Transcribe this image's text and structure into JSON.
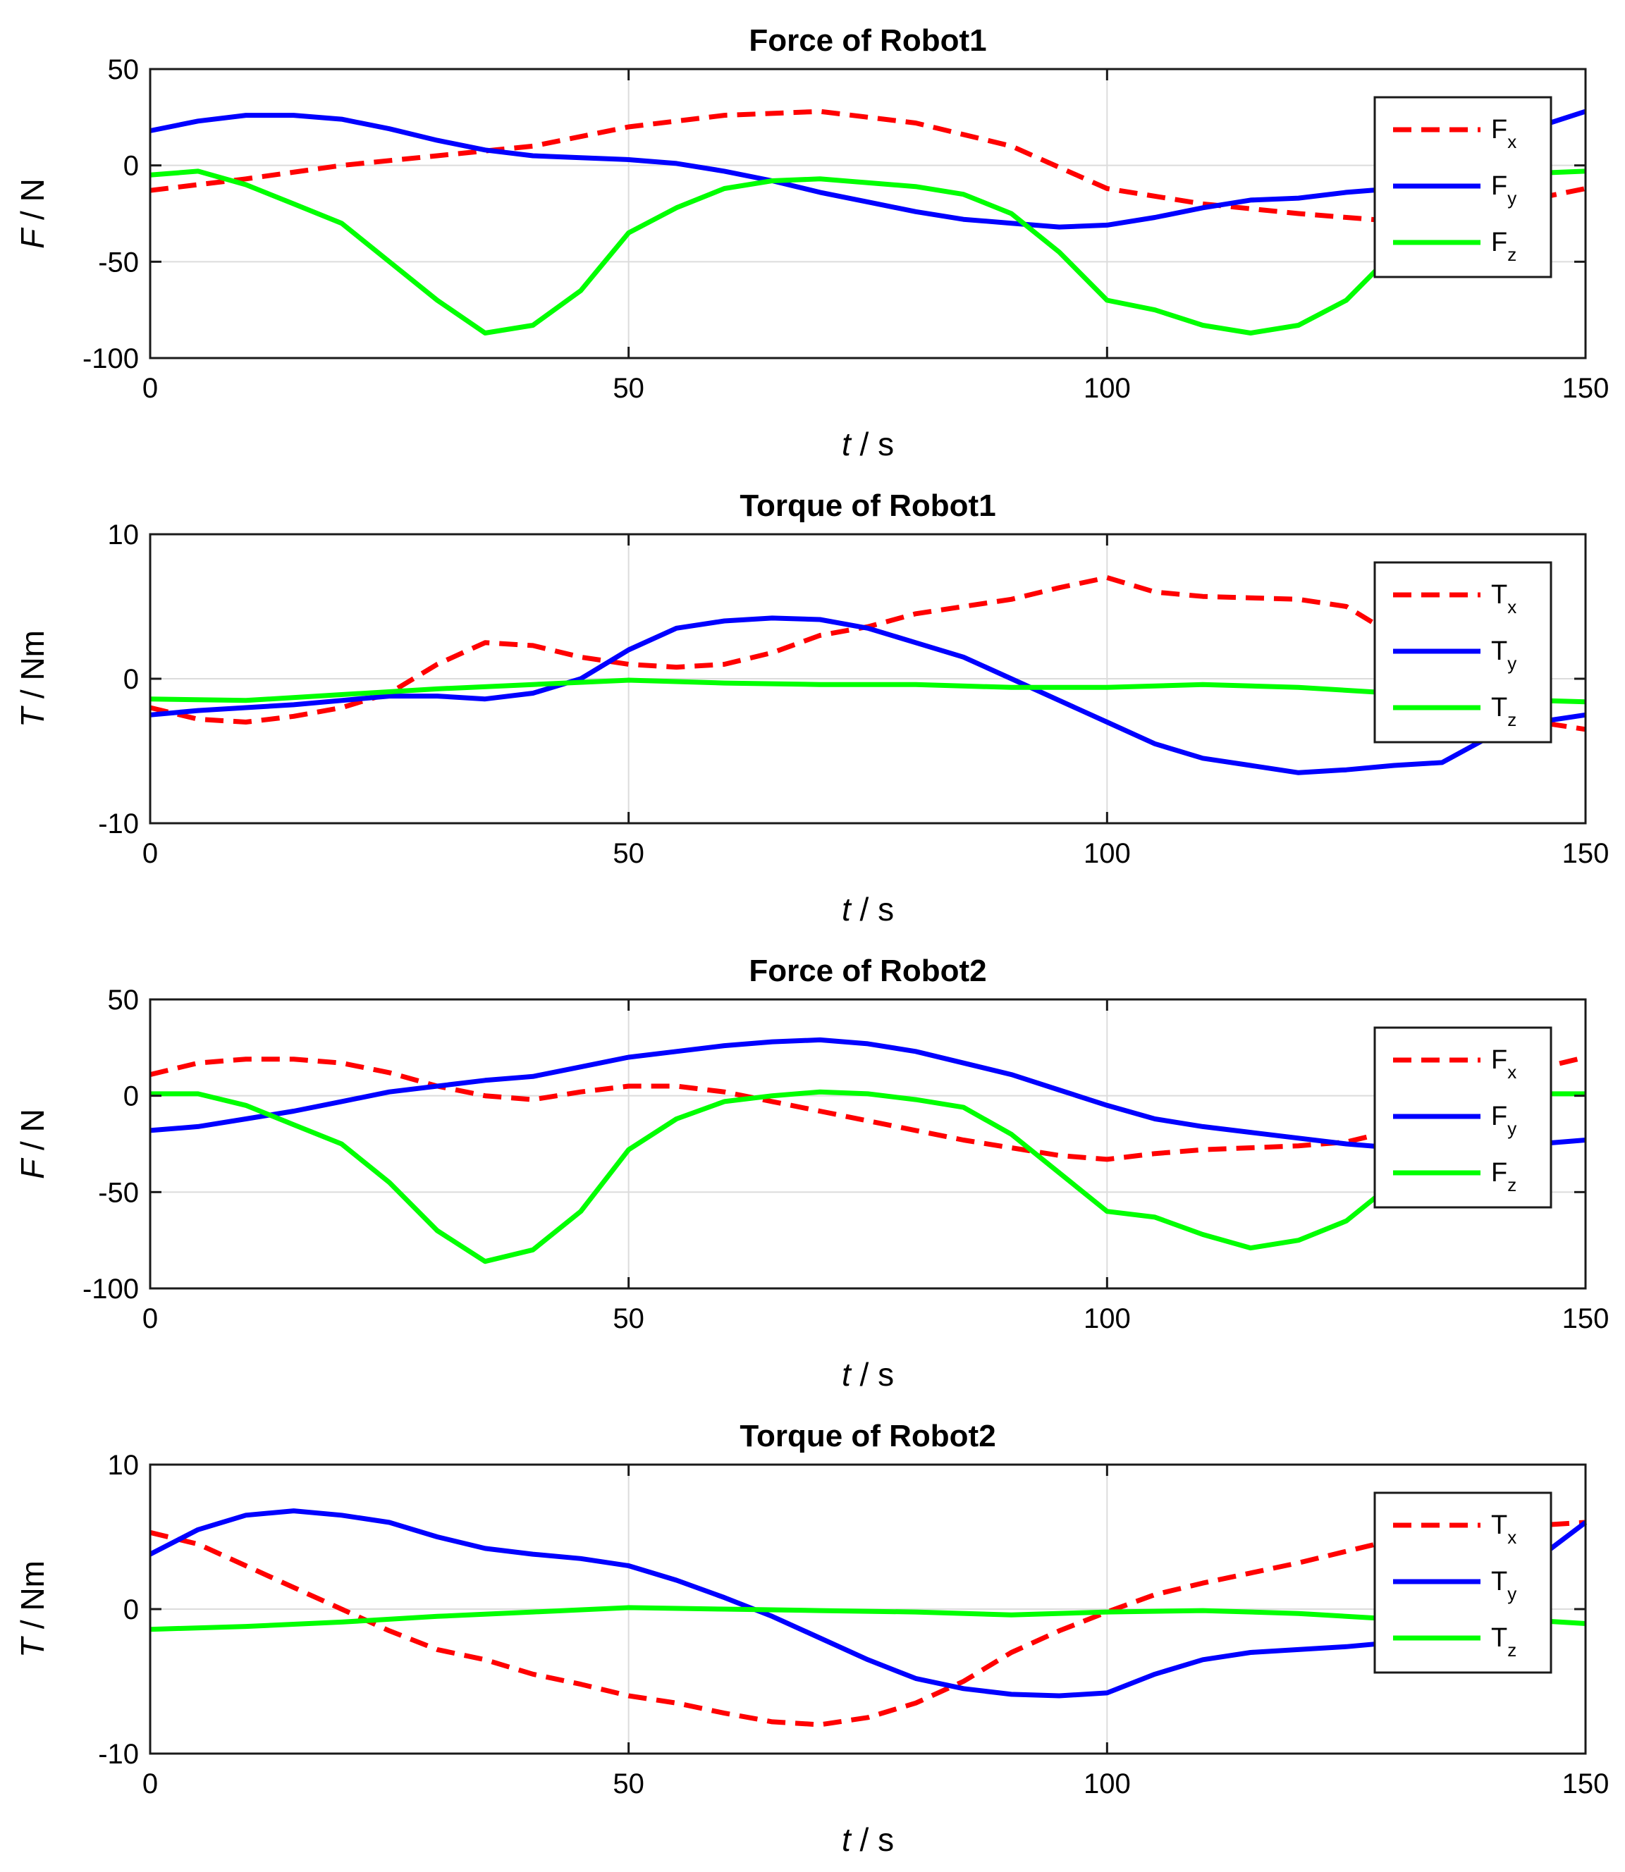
{
  "chart_data": [
    {
      "type": "line",
      "title": "Force of Robot1",
      "ylabel": {
        "main": "F",
        "unit": "N"
      },
      "xlabel": {
        "main": "t",
        "unit": "s"
      },
      "xlim": [
        0,
        150
      ],
      "ylim": [
        -100,
        50
      ],
      "xticks": [
        0,
        50,
        100,
        150
      ],
      "xtick_labels": [
        "0",
        "50",
        "100",
        "150"
      ],
      "yticks": [
        50,
        0,
        -50,
        -100
      ],
      "ytick_labels": [
        "50",
        "0",
        "-50",
        "-100"
      ],
      "grid": true,
      "legend_position": "top-right",
      "series": [
        {
          "name": "F",
          "sub": "x",
          "color": "#ff0000",
          "style": "dashed",
          "x": [
            0,
            10,
            20,
            30,
            40,
            50,
            60,
            70,
            80,
            90,
            100,
            110,
            120,
            130,
            140,
            150
          ],
          "y": [
            -13,
            -7,
            0,
            5,
            10,
            20,
            26,
            28,
            22,
            10,
            -12,
            -20,
            -25,
            -29,
            -22,
            -12
          ]
        },
        {
          "name": "F",
          "sub": "y",
          "color": "#0000ff",
          "style": "solid",
          "x": [
            0,
            5,
            10,
            15,
            20,
            25,
            30,
            35,
            40,
            45,
            50,
            55,
            60,
            65,
            70,
            75,
            80,
            85,
            90,
            95,
            100,
            105,
            110,
            115,
            120,
            125,
            130,
            135,
            140,
            145,
            150
          ],
          "y": [
            18,
            23,
            26,
            26,
            24,
            19,
            13,
            8,
            5,
            4,
            3,
            1,
            -3,
            -8,
            -14,
            -19,
            -24,
            -28,
            -30,
            -32,
            -31,
            -27,
            -22,
            -18,
            -17,
            -14,
            -12,
            -6,
            8,
            20,
            28
          ]
        },
        {
          "name": "F",
          "sub": "z",
          "color": "#00ff00",
          "style": "solid",
          "x": [
            0,
            5,
            10,
            15,
            20,
            25,
            30,
            35,
            40,
            45,
            50,
            55,
            60,
            65,
            70,
            75,
            80,
            85,
            90,
            95,
            100,
            105,
            110,
            115,
            120,
            125,
            130,
            135,
            140,
            145,
            150
          ],
          "y": [
            -5,
            -3,
            -10,
            -20,
            -30,
            -50,
            -70,
            -87,
            -83,
            -65,
            -35,
            -22,
            -12,
            -8,
            -7,
            -9,
            -11,
            -15,
            -25,
            -45,
            -70,
            -75,
            -83,
            -87,
            -83,
            -70,
            -45,
            -20,
            -8,
            -4,
            -3
          ]
        }
      ]
    },
    {
      "type": "line",
      "title": "Torque of Robot1",
      "ylabel": {
        "main": "T",
        "unit": "Nm"
      },
      "xlabel": {
        "main": "t",
        "unit": "s"
      },
      "xlim": [
        0,
        150
      ],
      "ylim": [
        -10,
        10
      ],
      "xticks": [
        0,
        50,
        100,
        150
      ],
      "xtick_labels": [
        "0",
        "50",
        "100",
        "150"
      ],
      "yticks": [
        10,
        0,
        -10
      ],
      "ytick_labels": [
        "10",
        "0",
        "-10"
      ],
      "grid": true,
      "legend_position": "top-right",
      "series": [
        {
          "name": "T",
          "sub": "x",
          "color": "#ff0000",
          "style": "dashed",
          "x": [
            0,
            5,
            10,
            15,
            20,
            25,
            30,
            35,
            40,
            45,
            50,
            55,
            60,
            65,
            70,
            75,
            80,
            85,
            90,
            95,
            100,
            105,
            110,
            115,
            120,
            125,
            130,
            135,
            140,
            145,
            150
          ],
          "y": [
            -2,
            -2.8,
            -3,
            -2.6,
            -2,
            -1,
            1,
            2.5,
            2.3,
            1.5,
            1,
            0.8,
            1,
            1.8,
            3,
            3.6,
            4.5,
            5,
            5.5,
            6.3,
            7,
            6,
            5.7,
            5.6,
            5.5,
            5,
            3,
            0,
            -2,
            -3,
            -3.5
          ]
        },
        {
          "name": "T",
          "sub": "y",
          "color": "#0000ff",
          "style": "solid",
          "x": [
            0,
            5,
            10,
            15,
            20,
            25,
            30,
            35,
            40,
            45,
            50,
            55,
            60,
            65,
            70,
            75,
            80,
            85,
            90,
            95,
            100,
            105,
            110,
            115,
            120,
            125,
            130,
            135,
            140,
            145,
            150
          ],
          "y": [
            -2.5,
            -2.2,
            -2,
            -1.8,
            -1.5,
            -1.2,
            -1.2,
            -1.4,
            -1,
            0,
            2,
            3.5,
            4,
            4.2,
            4.1,
            3.5,
            2.5,
            1.5,
            0,
            -1.5,
            -3,
            -4.5,
            -5.5,
            -6,
            -6.5,
            -6.3,
            -6,
            -5.8,
            -4,
            -3,
            -2.5
          ]
        },
        {
          "name": "T",
          "sub": "z",
          "color": "#00ff00",
          "style": "solid",
          "x": [
            0,
            10,
            20,
            30,
            40,
            50,
            60,
            70,
            80,
            90,
            100,
            110,
            120,
            130,
            140,
            150
          ],
          "y": [
            -1.4,
            -1.5,
            -1.1,
            -0.7,
            -0.4,
            -0.1,
            -0.3,
            -0.4,
            -0.4,
            -0.6,
            -0.6,
            -0.4,
            -0.6,
            -1.0,
            -1.4,
            -1.6
          ]
        }
      ]
    },
    {
      "type": "line",
      "title": "Force of Robot2",
      "ylabel": {
        "main": "F",
        "unit": "N"
      },
      "xlabel": {
        "main": "t",
        "unit": "s"
      },
      "xlim": [
        0,
        150
      ],
      "ylim": [
        -100,
        50
      ],
      "xticks": [
        0,
        50,
        100,
        150
      ],
      "xtick_labels": [
        "0",
        "50",
        "100",
        "150"
      ],
      "yticks": [
        50,
        0,
        -50,
        -100
      ],
      "ytick_labels": [
        "50",
        "0",
        "-50",
        "-100"
      ],
      "grid": true,
      "legend_position": "top-right",
      "series": [
        {
          "name": "F",
          "sub": "x",
          "color": "#ff0000",
          "style": "dashed",
          "x": [
            0,
            5,
            10,
            15,
            20,
            25,
            30,
            35,
            40,
            45,
            50,
            55,
            60,
            65,
            70,
            75,
            80,
            85,
            90,
            95,
            100,
            105,
            110,
            115,
            120,
            125,
            130,
            135,
            140,
            145,
            150
          ],
          "y": [
            11,
            17,
            19,
            19,
            17,
            12,
            5,
            0,
            -2,
            2,
            5,
            5,
            2,
            -3,
            -8,
            -13,
            -18,
            -23,
            -27,
            -31,
            -33,
            -30,
            -28,
            -27,
            -26,
            -24,
            -18,
            -8,
            5,
            14,
            20
          ]
        },
        {
          "name": "F",
          "sub": "y",
          "color": "#0000ff",
          "style": "solid",
          "x": [
            0,
            5,
            10,
            15,
            20,
            25,
            30,
            35,
            40,
            45,
            50,
            55,
            60,
            65,
            70,
            75,
            80,
            85,
            90,
            95,
            100,
            105,
            110,
            115,
            120,
            125,
            130,
            135,
            140,
            145,
            150
          ],
          "y": [
            -18,
            -16,
            -12,
            -8,
            -3,
            2,
            5,
            8,
            10,
            15,
            20,
            23,
            26,
            28,
            29,
            27,
            23,
            17,
            11,
            3,
            -5,
            -12,
            -16,
            -19,
            -22,
            -25,
            -27,
            -29,
            -28,
            -25,
            -23
          ]
        },
        {
          "name": "F",
          "sub": "z",
          "color": "#00ff00",
          "style": "solid",
          "x": [
            0,
            5,
            10,
            15,
            20,
            25,
            30,
            35,
            40,
            45,
            50,
            55,
            60,
            65,
            70,
            75,
            80,
            85,
            90,
            95,
            100,
            105,
            110,
            115,
            120,
            125,
            130,
            135,
            140,
            145,
            150
          ],
          "y": [
            1,
            1,
            -5,
            -15,
            -25,
            -45,
            -70,
            -86,
            -80,
            -60,
            -28,
            -12,
            -3,
            0,
            2,
            1,
            -2,
            -6,
            -20,
            -40,
            -60,
            -63,
            -72,
            -79,
            -75,
            -65,
            -45,
            -20,
            -5,
            1,
            1
          ]
        }
      ]
    },
    {
      "type": "line",
      "title": "Torque of Robot2",
      "ylabel": {
        "main": "T",
        "unit": "Nm"
      },
      "xlabel": {
        "main": "t",
        "unit": "s"
      },
      "xlim": [
        0,
        150
      ],
      "ylim": [
        -10,
        10
      ],
      "xticks": [
        0,
        50,
        100,
        150
      ],
      "xtick_labels": [
        "0",
        "50",
        "100",
        "150"
      ],
      "yticks": [
        10,
        0,
        -10
      ],
      "ytick_labels": [
        "10",
        "0",
        "-10"
      ],
      "grid": true,
      "legend_position": "top-right",
      "series": [
        {
          "name": "T",
          "sub": "x",
          "color": "#ff0000",
          "style": "dashed",
          "x": [
            0,
            5,
            10,
            15,
            20,
            25,
            30,
            35,
            40,
            45,
            50,
            55,
            60,
            65,
            70,
            75,
            80,
            85,
            90,
            95,
            100,
            105,
            110,
            115,
            120,
            125,
            130,
            135,
            140,
            145,
            150
          ],
          "y": [
            5.3,
            4.5,
            3,
            1.5,
            0,
            -1.5,
            -2.8,
            -3.5,
            -4.5,
            -5.2,
            -6,
            -6.5,
            -7.2,
            -7.8,
            -8,
            -7.5,
            -6.5,
            -5,
            -3,
            -1.5,
            -0.2,
            1,
            1.8,
            2.5,
            3.2,
            4,
            4.8,
            5.3,
            5.6,
            5.8,
            6
          ]
        },
        {
          "name": "T",
          "sub": "y",
          "color": "#0000ff",
          "style": "solid",
          "x": [
            0,
            5,
            10,
            15,
            20,
            25,
            30,
            35,
            40,
            45,
            50,
            55,
            60,
            65,
            70,
            75,
            80,
            85,
            90,
            95,
            100,
            105,
            110,
            115,
            120,
            125,
            130,
            135,
            140,
            145,
            150
          ],
          "y": [
            3.8,
            5.5,
            6.5,
            6.8,
            6.5,
            6,
            5,
            4.2,
            3.8,
            3.5,
            3,
            2,
            0.8,
            -0.5,
            -2,
            -3.5,
            -4.8,
            -5.5,
            -5.9,
            -6,
            -5.8,
            -4.5,
            -3.5,
            -3,
            -2.8,
            -2.6,
            -2.3,
            -1.8,
            0.5,
            3.5,
            6
          ]
        },
        {
          "name": "T",
          "sub": "z",
          "color": "#00ff00",
          "style": "solid",
          "x": [
            0,
            10,
            20,
            30,
            40,
            50,
            60,
            70,
            80,
            90,
            100,
            110,
            120,
            130,
            140,
            150
          ],
          "y": [
            -1.4,
            -1.2,
            -0.9,
            -0.5,
            -0.2,
            0.1,
            0,
            -0.1,
            -0.2,
            -0.4,
            -0.2,
            -0.1,
            -0.3,
            -0.7,
            -0.6,
            -1.0
          ]
        }
      ]
    }
  ]
}
